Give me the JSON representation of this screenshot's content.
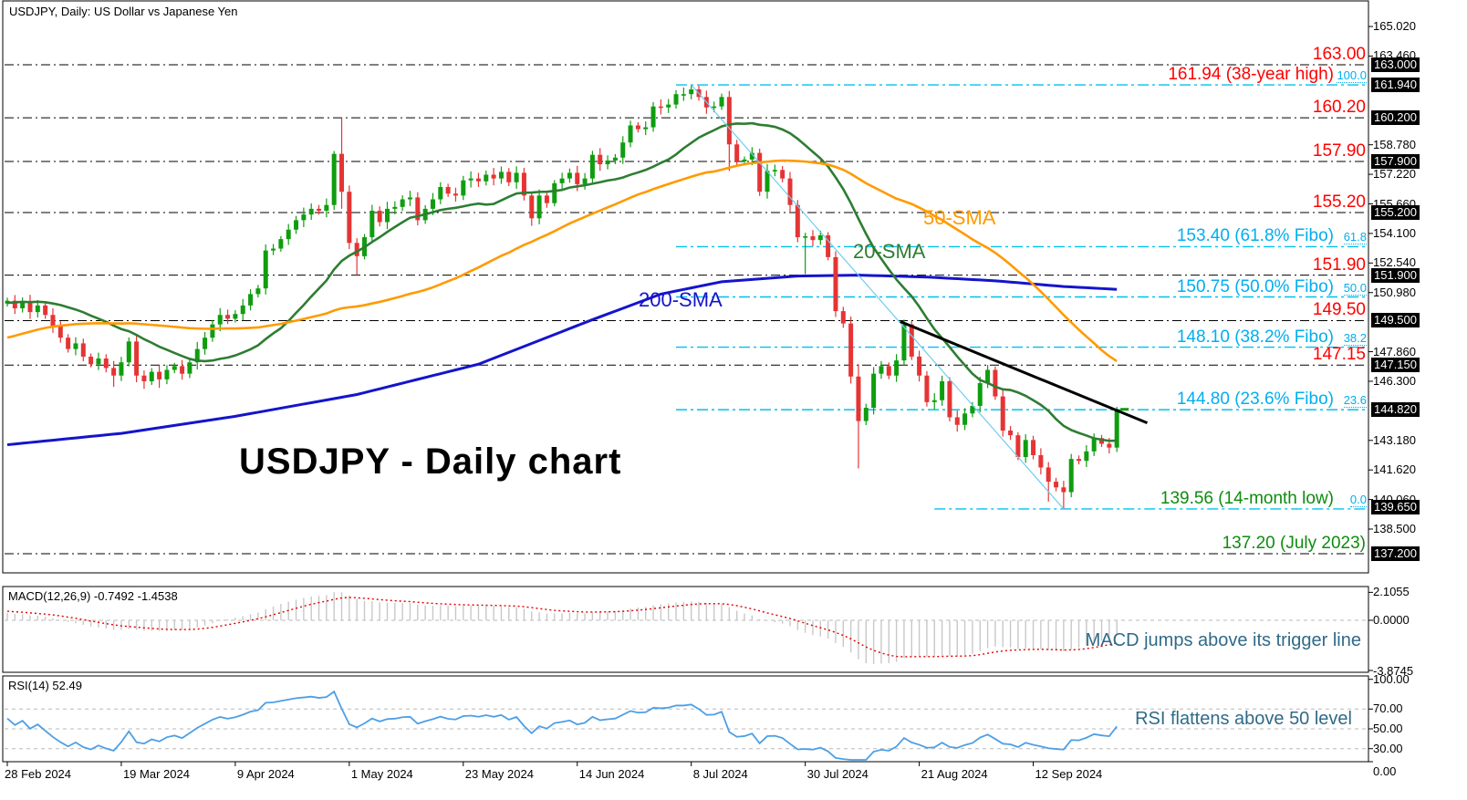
{
  "header": {
    "title": "USDJPY, Daily:  US Dollar vs Japanese Yen"
  },
  "watermark": "USDJPY - Daily chart",
  "panels": {
    "macd": {
      "label": "MACD(12,26,9) -0.7492 -1.4538",
      "macd_value": -0.7492,
      "signal_value": -1.4538,
      "axis": [
        {
          "text": "2.1055",
          "value": 2.1055
        },
        {
          "text": "0.0000",
          "value": 0
        },
        {
          "text": "-3.8745",
          "value": -3.8745
        }
      ],
      "annotation": "MACD jumps above its trigger line"
    },
    "rsi": {
      "label": "RSI(14) 52.49",
      "value": 52.49,
      "axis": [
        {
          "text": "100.00",
          "value": 100
        },
        {
          "text": "70.00",
          "value": 70
        },
        {
          "text": "50.00",
          "value": 50
        },
        {
          "text": "30.00",
          "value": 30
        },
        {
          "text": "0.00",
          "value": 0
        }
      ],
      "gridlines": [
        70,
        50,
        30
      ],
      "annotation": "RSI flattens above 50 level"
    }
  },
  "x_axis": {
    "labels": [
      "28 Feb 2024",
      "19 Mar 2024",
      "9 Apr 2024",
      "1 May 2024",
      "23 May 2024",
      "14 Jun 2024",
      "8 Jul 2024",
      "30 Jul 2024",
      "21 Aug 2024",
      "12 Sep 2024"
    ],
    "label_every": 15
  },
  "y_axis": {
    "plain": [
      165.02,
      163.46,
      158.78,
      157.22,
      155.66,
      154.1,
      152.54,
      150.98,
      147.86,
      146.3,
      143.18,
      141.62,
      140.06,
      138.5
    ],
    "boxed": [
      163.0,
      161.94,
      160.2,
      157.9,
      155.2,
      151.9,
      149.5,
      147.15,
      144.82,
      139.65,
      137.2
    ]
  },
  "level_lines": [
    {
      "price": 163.0,
      "label": "163.00",
      "label_color": "red",
      "line": "black"
    },
    {
      "price": 161.94,
      "label": "161.94 (38-year high)",
      "label_color": "red",
      "line": "cyan",
      "pct": "100.0",
      "start_idx": 88
    },
    {
      "price": 160.2,
      "label": "160.20",
      "label_color": "red",
      "line": "black"
    },
    {
      "price": 157.9,
      "label": "157.90",
      "label_color": "red",
      "line": "black"
    },
    {
      "price": 155.2,
      "label": "155.20",
      "label_color": "red",
      "line": "black"
    },
    {
      "price": 153.4,
      "label": "153.40 (61.8% Fibo)",
      "label_color": "cyan",
      "line": "cyan",
      "pct": "61.8",
      "start_idx": 88
    },
    {
      "price": 151.9,
      "label": "151.90",
      "label_color": "red",
      "line": "black"
    },
    {
      "price": 150.75,
      "label": "150.75 (50.0% Fibo)",
      "label_color": "cyan",
      "line": "cyan",
      "pct": "50.0",
      "start_idx": 88
    },
    {
      "price": 149.5,
      "label": "149.50",
      "label_color": "red",
      "line": "black"
    },
    {
      "price": 148.1,
      "label": "148.10 (38.2% Fibo)",
      "label_color": "cyan",
      "line": "cyan",
      "pct": "38.2",
      "start_idx": 88
    },
    {
      "price": 147.15,
      "label": "147.15",
      "label_color": "red",
      "line": "black"
    },
    {
      "price": 144.8,
      "label": "144.80 (23.6% Fibo)",
      "label_color": "cyan",
      "line": "cyan",
      "pct": "23.6",
      "start_idx": 88
    },
    {
      "price": 139.56,
      "label": "139.56 (14-month low)",
      "label_color": "green",
      "line": "cyan",
      "pct": "0.0",
      "start_idx": 122
    },
    {
      "price": 137.2,
      "label": "137.20 (July 2023)",
      "label_color": "green",
      "line": "black"
    }
  ],
  "sma_labels": {
    "s20": {
      "text": "20-SMA",
      "color": "#2e7d32"
    },
    "s50": {
      "text": "50-SMA",
      "color": "#ff9a00"
    },
    "s200": {
      "text": "200-SMA",
      "color": "#1414cc"
    }
  },
  "colors": {
    "red_label": "#ff0000",
    "cyan": "#00aeef",
    "cyan_line": "#00c0f0",
    "green_label": "#0e8c0e",
    "up": "#0f9d0f",
    "down": "#e53434",
    "sma20": "#2e7d32",
    "sma50": "#ff9a00",
    "sma200": "#1414cc",
    "macd_hist": "#c8c8c8",
    "macd_signal": "#e00000",
    "rsi": "#4d9fe6",
    "annotation": "#306a88",
    "trendline": "#000000",
    "downtrend": "#6fcdef",
    "grid": "#b8b8b8",
    "level_black": "#000000"
  },
  "chart_data": {
    "type": "candlestick",
    "symbol": "USDJPY",
    "timeframe": "Daily",
    "title": "USDJPY - Daily chart",
    "ylim": [
      136.19,
      166.37
    ],
    "current_price": 144.82,
    "closes": [
      150.55,
      150.15,
      150.5,
      149.95,
      150.3,
      149.8,
      149.2,
      148.6,
      148.0,
      148.3,
      147.6,
      147.2,
      147.5,
      147.0,
      146.6,
      147.3,
      148.4,
      146.6,
      146.3,
      146.8,
      146.4,
      146.9,
      147.1,
      146.7,
      147.3,
      148.0,
      148.6,
      149.3,
      149.8,
      149.6,
      149.85,
      150.3,
      150.9,
      151.2,
      153.2,
      153.3,
      153.8,
      154.3,
      154.8,
      155.1,
      155.4,
      155.3,
      155.6,
      158.3,
      156.3,
      153.6,
      152.9,
      153.9,
      155.3,
      154.7,
      155.4,
      155.5,
      155.9,
      156.0,
      154.8,
      155.4,
      155.9,
      156.55,
      156.2,
      156.1,
      156.9,
      157.0,
      156.85,
      157.2,
      157.0,
      157.35,
      156.8,
      157.3,
      156.1,
      154.9,
      156.1,
      155.7,
      156.75,
      157.0,
      157.3,
      156.7,
      157.0,
      158.25,
      157.75,
      157.95,
      158.1,
      158.9,
      159.8,
      159.6,
      159.7,
      160.8,
      160.75,
      160.9,
      161.45,
      161.45,
      161.7,
      161.3,
      160.75,
      160.8,
      161.3,
      158.8,
      157.9,
      158.0,
      158.35,
      156.3,
      157.4,
      157.45,
      157.0,
      155.6,
      153.9,
      153.95,
      153.75,
      154.0,
      152.85,
      150.0,
      149.35,
      146.55,
      144.2,
      144.9,
      146.7,
      147.1,
      146.6,
      147.4,
      149.3,
      147.6,
      146.6,
      145.2,
      145.3,
      146.3,
      144.4,
      144.0,
      144.6,
      145.0,
      146.2,
      146.9,
      145.5,
      143.7,
      143.45,
      142.3,
      143.2,
      142.4,
      141.75,
      141.0,
      140.7,
      140.45,
      142.2,
      142.1,
      142.6,
      143.3,
      143.0,
      142.8,
      144.82
    ],
    "pre_closes": [
      144.8,
      145.2,
      145.0,
      144.6,
      144.9,
      145.4,
      145.8,
      146.1,
      145.9,
      146.3,
      146.6,
      146.4,
      146.8,
      147.2,
      147.0,
      147.5,
      147.8,
      147.6,
      148.0,
      148.3,
      148.1,
      148.5,
      148.9,
      148.7,
      149.0,
      148.8,
      149.2,
      149.4,
      149.1,
      149.5,
      149.8,
      149.6,
      150.0,
      150.2,
      149.9,
      150.3,
      150.5,
      150.2,
      150.4,
      150.7,
      150.5,
      150.8,
      150.6,
      150.4,
      150.6,
      150.9,
      150.7,
      150.5,
      150.8,
      150.55
    ],
    "wicks": {
      "14": {
        "l": 146.0
      },
      "18": {
        "l": 145.9
      },
      "20": {
        "l": 145.95
      },
      "43": {
        "h": 158.45
      },
      "44": {
        "h": 160.2,
        "l": 155.4
      },
      "46": {
        "l": 151.9
      },
      "69": {
        "l": 154.5
      },
      "89": {
        "h": 161.8
      },
      "90": {
        "h": 161.94
      },
      "95": {
        "l": 157.4
      },
      "105": {
        "l": 151.95
      },
      "112": {
        "h": 147.2,
        "l": 141.7
      },
      "137": {
        "l": 139.95
      },
      "139": {
        "l": 139.56
      },
      "146": {
        "h": 144.95
      }
    },
    "sma_windows": {
      "short": 20,
      "mid": 50,
      "long": 200
    },
    "sma200_anchors": [
      [
        0,
        142.95
      ],
      [
        15,
        143.55
      ],
      [
        30,
        144.45
      ],
      [
        46,
        145.6
      ],
      [
        62,
        147.2
      ],
      [
        77,
        149.55
      ],
      [
        86,
        150.9
      ],
      [
        94,
        151.55
      ],
      [
        104,
        151.85
      ],
      [
        112,
        151.9
      ],
      [
        121,
        151.8
      ],
      [
        130,
        151.6
      ],
      [
        139,
        151.3
      ],
      [
        146,
        151.15
      ]
    ],
    "trendline": {
      "from": {
        "idx": 117.5,
        "price": 149.45
      },
      "to": {
        "idx": 150,
        "price": 144.1
      }
    },
    "downtrend_line": {
      "from": {
        "idx": 90,
        "price": 161.94
      },
      "to": {
        "idx": 139,
        "price": 139.56
      }
    },
    "macd_params": [
      12,
      26,
      9
    ],
    "rsi_period": 14
  }
}
